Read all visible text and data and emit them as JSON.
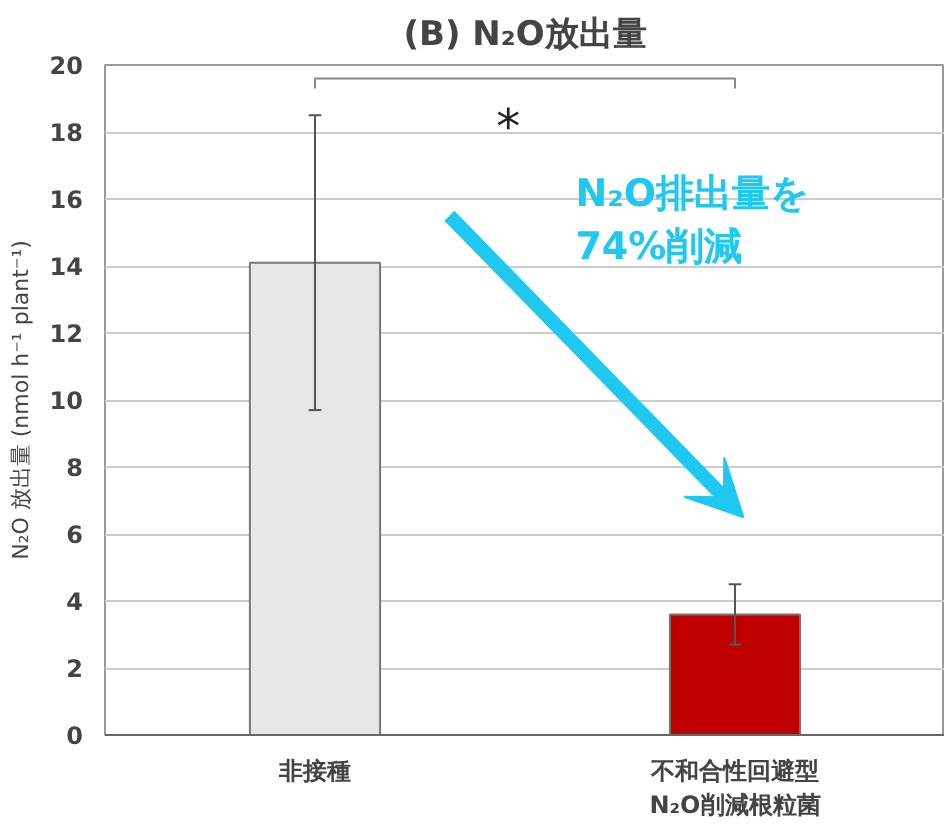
{
  "chart_data": {
    "type": "bar",
    "title": "(B) N₂O放出量",
    "ylabel": "N₂O 放出量 (nmol h⁻¹ plant⁻¹)",
    "categories": [
      "非接種",
      "不和合性回避型\nN₂O削減根粒菌"
    ],
    "values": [
      14.1,
      3.6
    ],
    "colors": [
      "#e6e6e6",
      "#c00000"
    ],
    "errors": [
      [
        9.7,
        18.5
      ],
      [
        2.7,
        4.5
      ]
    ],
    "ylim": [
      0,
      20
    ],
    "yticks": [
      0,
      2,
      4,
      6,
      8,
      10,
      12,
      14,
      16,
      18,
      20
    ],
    "grid": "y",
    "annotations": [
      "*",
      "N₂O排出量を\n74%削減"
    ]
  }
}
